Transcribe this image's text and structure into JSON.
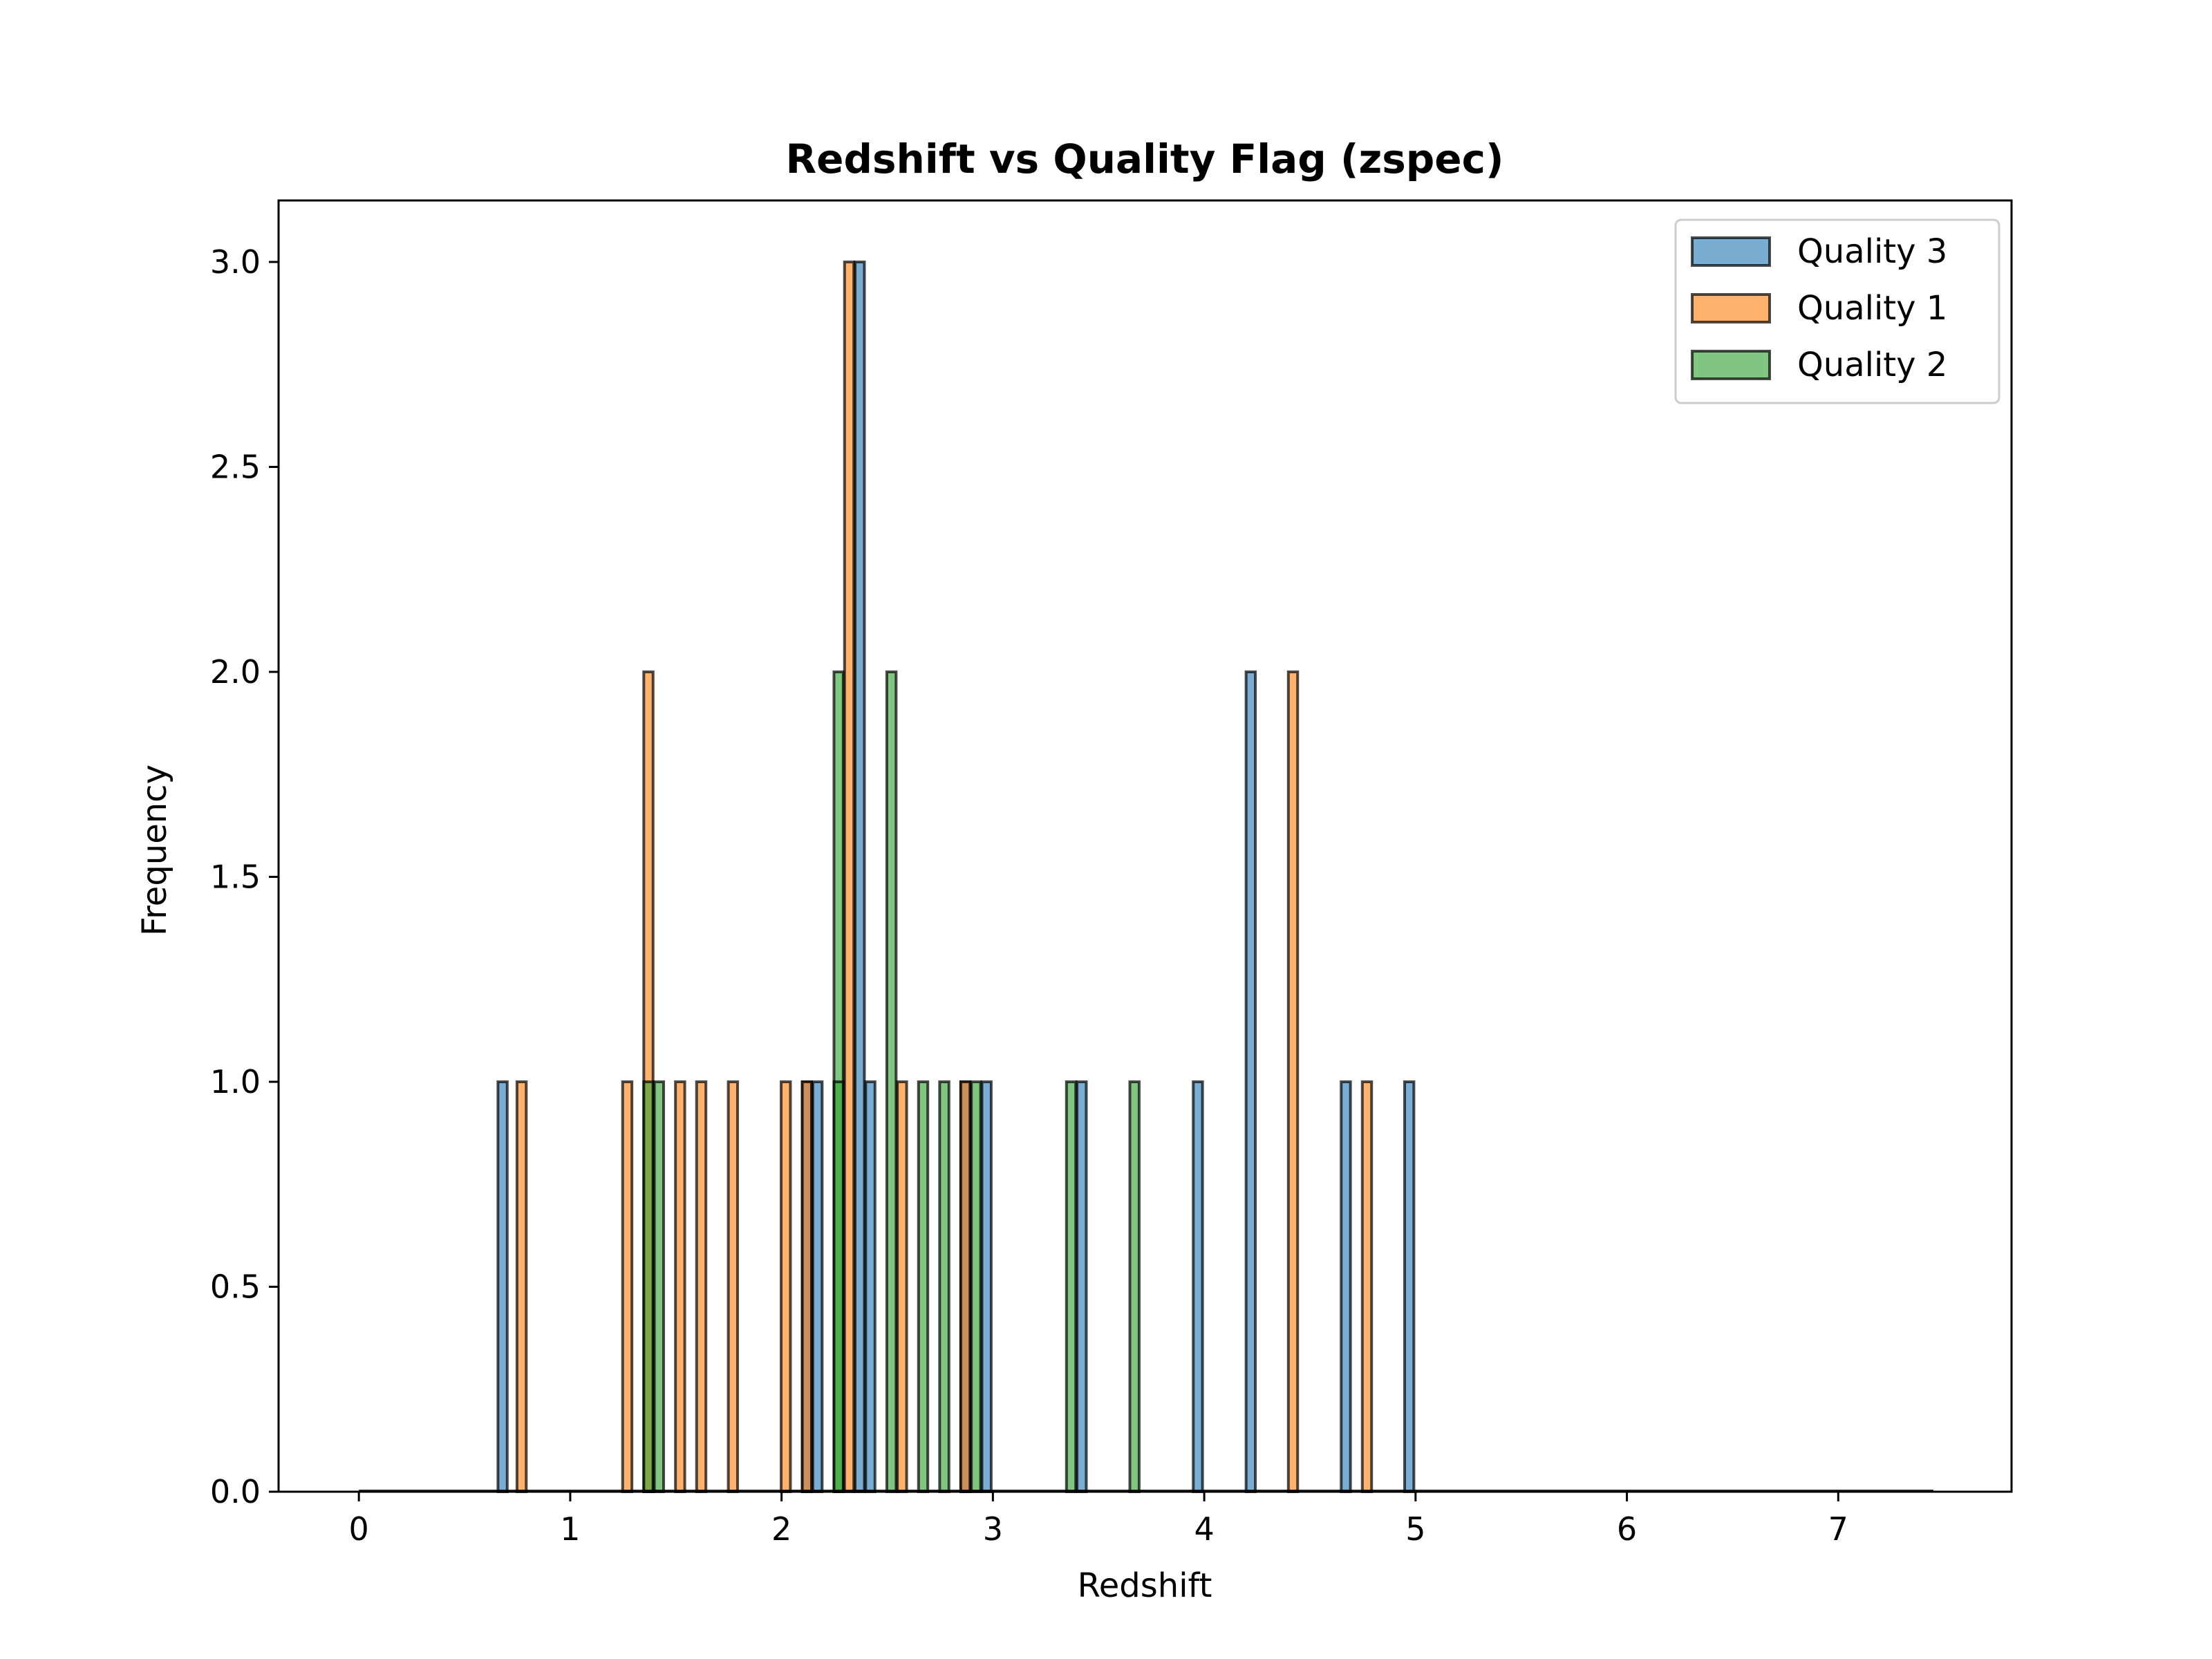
{
  "chart_data": {
    "type": "bar",
    "title": "Redshift vs Quality Flag (zspec)",
    "xlabel": "Redshift",
    "ylabel": "Frequency",
    "xlim": [
      -0.38,
      7.82
    ],
    "ylim": [
      0,
      3.15
    ],
    "xticks": [
      0,
      1,
      2,
      3,
      4,
      5,
      6,
      7
    ],
    "xtick_labels": [
      "0",
      "1",
      "2",
      "3",
      "4",
      "5",
      "6",
      "7"
    ],
    "yticks": [
      0,
      0.5,
      1,
      1.5,
      2,
      2.5,
      3
    ],
    "ytick_labels": [
      "0.0",
      "0.5",
      "1.0",
      "1.5",
      "2.0",
      "2.5",
      "3.0"
    ],
    "bin_start": 0,
    "bin_end": 7.45,
    "bin_width": 0.05,
    "bar_width": 0.044,
    "grid": false,
    "legend_position": "upper right",
    "series": [
      {
        "name": "Quality 3",
        "color": "#1f77b4",
        "bars": [
          {
            "x": 0.68,
            "y": 1
          },
          {
            "x": 2.12,
            "y": 1
          },
          {
            "x": 2.17,
            "y": 1
          },
          {
            "x": 2.37,
            "y": 3
          },
          {
            "x": 2.42,
            "y": 1
          },
          {
            "x": 2.87,
            "y": 1
          },
          {
            "x": 2.97,
            "y": 1
          },
          {
            "x": 3.42,
            "y": 1
          },
          {
            "x": 3.97,
            "y": 1
          },
          {
            "x": 4.22,
            "y": 2
          },
          {
            "x": 4.67,
            "y": 1
          },
          {
            "x": 4.97,
            "y": 1
          }
        ]
      },
      {
        "name": "Quality 1",
        "color": "#ff7f0e",
        "bars": [
          {
            "x": 0.77,
            "y": 1
          },
          {
            "x": 1.27,
            "y": 1
          },
          {
            "x": 1.37,
            "y": 2
          },
          {
            "x": 1.52,
            "y": 1
          },
          {
            "x": 1.62,
            "y": 1
          },
          {
            "x": 1.77,
            "y": 1
          },
          {
            "x": 2.02,
            "y": 1
          },
          {
            "x": 2.12,
            "y": 1
          },
          {
            "x": 2.32,
            "y": 3
          },
          {
            "x": 2.57,
            "y": 1
          },
          {
            "x": 2.87,
            "y": 1
          },
          {
            "x": 4.42,
            "y": 2
          },
          {
            "x": 4.77,
            "y": 1
          }
        ]
      },
      {
        "name": "Quality 2",
        "color": "#2ca02c",
        "bars": [
          {
            "x": 1.37,
            "y": 1
          },
          {
            "x": 1.42,
            "y": 1
          },
          {
            "x": 2.27,
            "y": 2
          },
          {
            "x": 2.27,
            "y": 1
          },
          {
            "x": 2.52,
            "y": 2
          },
          {
            "x": 2.67,
            "y": 1
          },
          {
            "x": 2.77,
            "y": 1
          },
          {
            "x": 2.92,
            "y": 1
          },
          {
            "x": 3.37,
            "y": 1
          },
          {
            "x": 3.67,
            "y": 1
          }
        ]
      }
    ]
  }
}
